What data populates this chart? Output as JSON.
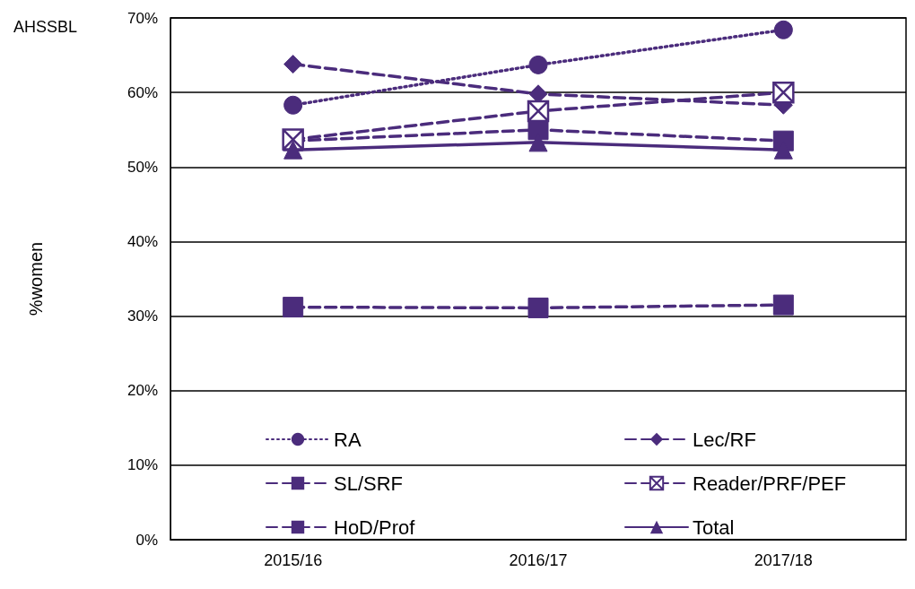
{
  "chart_data": {
    "type": "line",
    "title": "AHSSBL",
    "ylabel": "%women",
    "categories": [
      "2015/16",
      "2016/17",
      "2017/18"
    ],
    "series": [
      {
        "name": "RA",
        "color": "#4b2c7c",
        "values": [
          58.3,
          63.7,
          68.4
        ],
        "marker": "circle",
        "line_style": "dotted"
      },
      {
        "name": "Lec/RF",
        "color": "#4b2c7c",
        "values": [
          63.8,
          59.8,
          58.3
        ],
        "marker": "diamond",
        "line_style": "dashed"
      },
      {
        "name": "SL/SRF",
        "color": "#4b2c7c",
        "values": [
          53.5,
          55.0,
          53.5
        ],
        "marker": "square",
        "line_style": "dashed"
      },
      {
        "name": "Reader/PRF/PEF",
        "color": "#4b2c7c",
        "values": [
          53.7,
          57.5,
          60.0
        ],
        "marker": "cross",
        "line_style": "dashed"
      },
      {
        "name": "HoD/Prof",
        "color": "#4b2c7c",
        "values": [
          31.2,
          31.1,
          31.5
        ],
        "marker": "square",
        "line_style": "dashed"
      },
      {
        "name": "Total",
        "color": "#4b2c7c",
        "values": [
          52.3,
          53.3,
          52.3
        ],
        "marker": "triangle",
        "line_style": "solid"
      }
    ],
    "ylim": [
      0,
      70
    ],
    "yticks": [
      {
        "value": 0,
        "label": "0%"
      },
      {
        "value": 10,
        "label": "10%"
      },
      {
        "value": 20,
        "label": "20%"
      },
      {
        "value": 30,
        "label": "30%"
      },
      {
        "value": 40,
        "label": "40%"
      },
      {
        "value": 50,
        "label": "50%"
      },
      {
        "value": 60,
        "label": "60%"
      },
      {
        "value": 70,
        "label": "70%"
      }
    ],
    "grid": "y",
    "legend": "bottom"
  }
}
